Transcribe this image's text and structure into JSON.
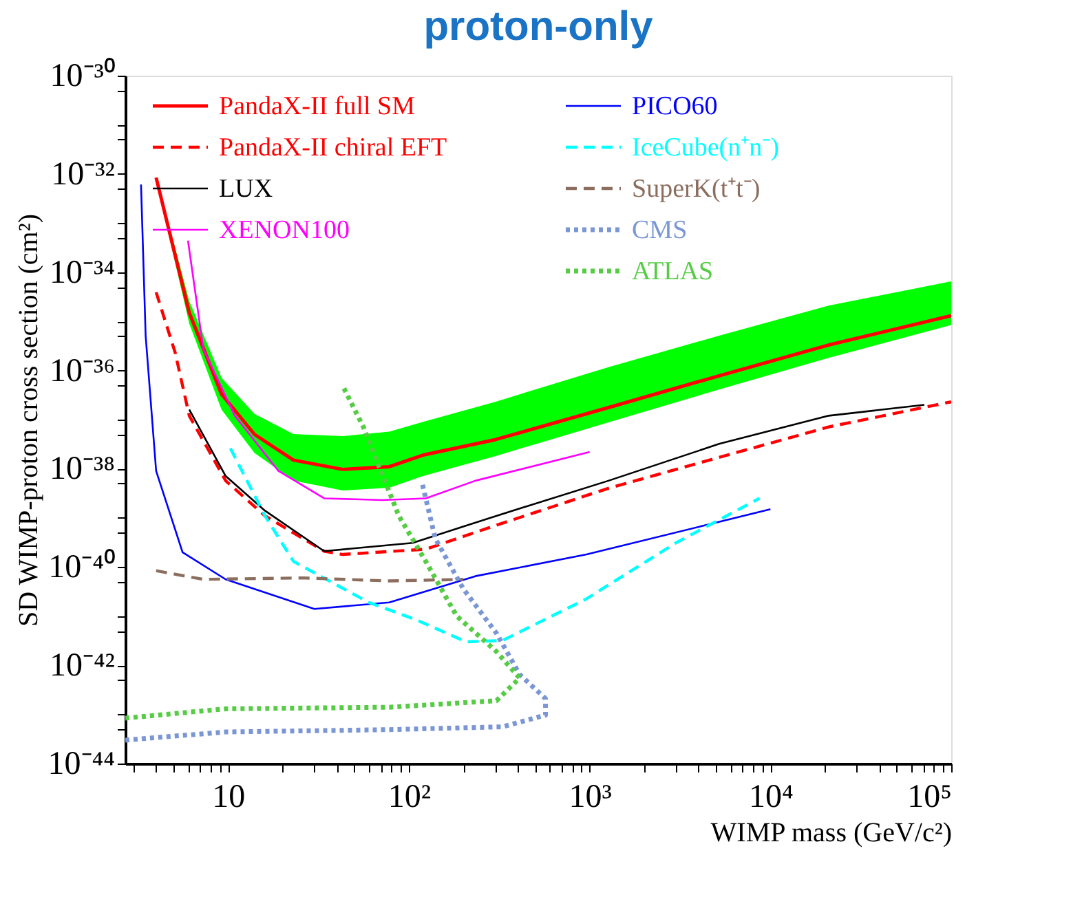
{
  "chart_data": {
    "type": "line",
    "title": "proton-only",
    "xlabel": "WIMP mass (GeV/c²)",
    "ylabel": "SD WIMP-proton cross section (cm²)",
    "log": "xy",
    "legend": "top left",
    "xlim": [
      2.7,
      100000
    ],
    "ylim": [
      1e-44,
      1e-30
    ],
    "xticks": [
      {
        "value": 3,
        "label": null
      },
      {
        "value": 4,
        "label": null
      },
      {
        "value": 5,
        "label": null
      },
      {
        "value": 6,
        "label": null
      },
      {
        "value": 7,
        "label": null
      },
      {
        "value": 8,
        "label": null
      },
      {
        "value": 9,
        "label": null
      },
      {
        "value": 10,
        "label": "10"
      },
      {
        "value": 20,
        "label": null
      },
      {
        "value": 30,
        "label": null
      },
      {
        "value": 40,
        "label": null
      },
      {
        "value": 50,
        "label": null
      },
      {
        "value": 60,
        "label": null
      },
      {
        "value": 70,
        "label": null
      },
      {
        "value": 80,
        "label": null
      },
      {
        "value": 90,
        "label": null
      },
      {
        "value": 100,
        "label": "10²"
      },
      {
        "value": 200,
        "label": null
      },
      {
        "value": 300,
        "label": null
      },
      {
        "value": 400,
        "label": null
      },
      {
        "value": 500,
        "label": null
      },
      {
        "value": 600,
        "label": null
      },
      {
        "value": 700,
        "label": null
      },
      {
        "value": 800,
        "label": null
      },
      {
        "value": 900,
        "label": null
      },
      {
        "value": 1000,
        "label": "10³"
      },
      {
        "value": 2000,
        "label": null
      },
      {
        "value": 3000,
        "label": null
      },
      {
        "value": 4000,
        "label": null
      },
      {
        "value": 5000,
        "label": null
      },
      {
        "value": 6000,
        "label": null
      },
      {
        "value": 7000,
        "label": null
      },
      {
        "value": 8000,
        "label": null
      },
      {
        "value": 9000,
        "label": null
      },
      {
        "value": 10000,
        "label": "10⁴"
      },
      {
        "value": 20000,
        "label": null
      },
      {
        "value": 30000,
        "label": null
      },
      {
        "value": 40000,
        "label": null
      },
      {
        "value": 50000,
        "label": null
      },
      {
        "value": 60000,
        "label": null
      },
      {
        "value": 70000,
        "label": null
      },
      {
        "value": 80000,
        "label": null
      },
      {
        "value": 90000,
        "label": null
      },
      {
        "value": 100000,
        "label": "10⁵"
      }
    ],
    "yticks": [
      {
        "value": 1e-30,
        "label": "10⁻³⁰"
      },
      {
        "value": 5e-31,
        "label": null
      },
      {
        "value": 1e-31,
        "label": null
      },
      {
        "value": 5e-32,
        "label": null
      },
      {
        "value": 1e-32,
        "label": "10⁻³²"
      },
      {
        "value": 5e-33,
        "label": null
      },
      {
        "value": 1e-33,
        "label": null
      },
      {
        "value": 5e-34,
        "label": null
      },
      {
        "value": 1e-34,
        "label": "10⁻³⁴"
      },
      {
        "value": 5e-35,
        "label": null
      },
      {
        "value": 1e-35,
        "label": null
      },
      {
        "value": 5e-36,
        "label": null
      },
      {
        "value": 1e-36,
        "label": "10⁻³⁶"
      },
      {
        "value": 5e-37,
        "label": null
      },
      {
        "value": 1e-37,
        "label": null
      },
      {
        "value": 5e-38,
        "label": null
      },
      {
        "value": 1e-38,
        "label": "10⁻³⁸"
      },
      {
        "value": 5e-39,
        "label": null
      },
      {
        "value": 1e-39,
        "label": null
      },
      {
        "value": 5e-40,
        "label": null
      },
      {
        "value": 1e-40,
        "label": "10⁻⁴⁰"
      },
      {
        "value": 5e-41,
        "label": null
      },
      {
        "value": 1e-41,
        "label": null
      },
      {
        "value": 5e-42,
        "label": null
      },
      {
        "value": 1e-42,
        "label": "10⁻⁴²"
      },
      {
        "value": 5e-43,
        "label": null
      },
      {
        "value": 1e-43,
        "label": null
      },
      {
        "value": 5e-44,
        "label": null
      },
      {
        "value": 1e-44,
        "label": "10⁻⁴⁴"
      }
    ],
    "series": [
      {
        "name": "PandaX-II full SM",
        "color": "#ff0000",
        "line_style": "solid",
        "x": [
          4.0,
          6.1,
          9.2,
          14,
          23,
          43,
          78,
          120,
          300,
          1300,
          5200,
          21000,
          100000
        ],
        "values": [
          8.4e-33,
          1.5e-35,
          3.3e-37,
          5e-38,
          1.5e-38,
          9.7e-39,
          1.1e-38,
          1.9e-38,
          3.9e-38,
          1.8e-37,
          7.8e-37,
          3.3e-36,
          1.3e-35
        ],
        "lower": [
          7.1e-33,
          9e-36,
          1.6e-37,
          2.1e-38,
          5.7e-39,
          3.6e-39,
          4.1e-39,
          7.1e-39,
          1.8e-38,
          9e-38,
          4.1e-37,
          1.8e-36,
          8.4e-36
        ],
        "upper": [
          9e-33,
          2.6e-35,
          7.1e-37,
          1.3e-37,
          5.1e-38,
          4.6e-38,
          5.7e-38,
          9e-38,
          2.3e-37,
          1.2e-36,
          5.1e-36,
          2.1e-35,
          6.5e-35
        ]
      },
      {
        "name": "PandaX-II chiral EFT",
        "color": "#ff0000",
        "line_style": "dashed",
        "x": [
          4.0,
          5.1,
          6.1,
          9.7,
          16,
          34,
          43,
          124,
          305,
          1270,
          5200,
          21000,
          100000
        ],
        "values": [
          3.9e-35,
          2.3e-36,
          1.2e-37,
          5.7e-39,
          1.1e-39,
          2.1e-40,
          1.8e-40,
          2.3e-40,
          7.1e-40,
          4e-39,
          1.7e-38,
          7.1e-38,
          2.3e-37
        ]
      },
      {
        "name": "LUX",
        "color": "#000000",
        "line_style": "solid",
        "x": [
          6.1,
          9.7,
          16,
          34,
          105,
          305,
          1270,
          5200,
          21000,
          71000
        ],
        "values": [
          1.6e-37,
          7.1e-39,
          1.4e-39,
          2.1e-40,
          3.1e-40,
          1.1e-39,
          5.7e-39,
          3.2e-38,
          1.2e-37,
          2e-37
        ]
      },
      {
        "name": "XENON100",
        "color": "#ff00ff",
        "line_style": "solid",
        "x": [
          6.0,
          7.3,
          10.9,
          19,
          34,
          71,
          124,
          233,
          1000
        ],
        "values": [
          4.4e-34,
          2.7e-36,
          1.2e-37,
          9e-39,
          2.5e-39,
          2.3e-39,
          2.5e-39,
          5.7e-39,
          2.2e-38
        ]
      },
      {
        "name": "PICO60",
        "color": "#0000ff",
        "line_style": "solid",
        "x": [
          3.3,
          3.5,
          4.0,
          5.6,
          9.7,
          30,
          78,
          233,
          960,
          10000
        ],
        "values": [
          6.1e-33,
          5.1e-36,
          9e-39,
          2e-40,
          5.6e-41,
          1.4e-41,
          1.9e-41,
          6.5e-41,
          1.8e-40,
          1.5e-39
        ]
      },
      {
        "name": "IceCube(n⁺n⁻)",
        "color": "#00ffff",
        "line_style": "dashed",
        "x": [
          10.3,
          16,
          23,
          60,
          110,
          207,
          330,
          950,
          3000,
          8700
        ],
        "values": [
          2.6e-38,
          1.1e-39,
          1.3e-40,
          1.9e-41,
          8.4e-42,
          3e-42,
          3.2e-42,
          2.2e-41,
          3.1e-40,
          2.5e-39
        ]
      },
      {
        "name": "SuperK(t⁺t⁻)",
        "color": "#8c6e5f",
        "line_style": "dashed",
        "x": [
          4.0,
          7.3,
          26,
          78,
          200
        ],
        "values": [
          8.4e-41,
          5.6e-41,
          6e-41,
          5.2e-41,
          5.6e-41
        ]
      },
      {
        "name": "CMS",
        "color": "#7b96d4",
        "line_style": "dotted",
        "x": [
          2.7,
          9.7,
          78,
          330,
          570,
          570,
          410,
          305,
          200,
          140,
          118
        ],
        "values": [
          3e-44,
          4.4e-44,
          4.9e-44,
          5.6e-44,
          9.7e-44,
          2.1e-43,
          6.5e-43,
          4.5e-42,
          3.6e-41,
          3.8e-40,
          5.4e-39
        ]
      },
      {
        "name": "ATLAS",
        "color": "#55cc44",
        "line_style": "dotted",
        "x": [
          2.7,
          9.7,
          78,
          305,
          410,
          305,
          184,
          124,
          88,
          56,
          43
        ],
        "values": [
          8.4e-44,
          1.3e-43,
          1.4e-43,
          1.9e-43,
          5.5e-43,
          1.9e-42,
          1e-41,
          1.3e-40,
          1.1e-39,
          7.1e-38,
          4.9e-37
        ]
      }
    ]
  }
}
